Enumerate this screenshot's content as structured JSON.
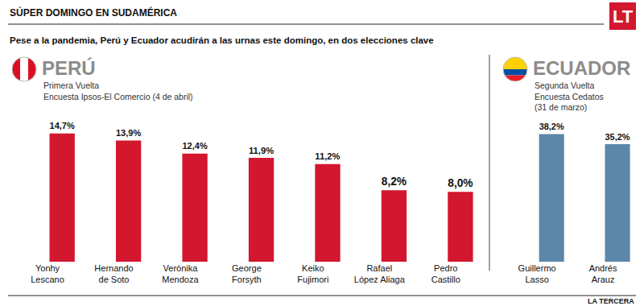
{
  "title": "SÚPER DOMINGO EN SUDAMÉRICA",
  "subtitle": "Pese a la pandemia, Perú y Ecuador acudirán a las urnas este domingo, en dos elecciones clave",
  "logo": "LT",
  "source": "LA TERCERA",
  "chart_data": [
    {
      "type": "bar",
      "title": "PERÚ",
      "subtitle": "Primera Vuelta\nEncuesta Ipsos-El Comercio (4 de abril)",
      "categories": [
        "Yonhy\nLescano",
        "Hernando\nde Soto",
        "Verónika\nMendoza",
        "George\nForsyth",
        "Keiko\nFujimori",
        "Rafael\nLópez Aliaga",
        "Pedro\nCastillo"
      ],
      "values": [
        14.7,
        13.9,
        12.4,
        11.9,
        11.2,
        8.2,
        8.0
      ],
      "value_labels": [
        "14,7%",
        "13,9%",
        "12,4%",
        "11,9%",
        "11,2%",
        "8,2%",
        "8,0%"
      ],
      "color": "#d3172e",
      "ylim": [
        0,
        18
      ],
      "data_labels": true,
      "tick_labels": "x",
      "grid": false
    },
    {
      "type": "bar",
      "title": "ECUADOR",
      "subtitle": "Segunda Vuelta\nEncuesta Cedatos\n(31 de marzo)",
      "categories": [
        "Guillermo\nLasso",
        "Andrés\nArauz"
      ],
      "values": [
        38.2,
        35.2
      ],
      "value_labels": [
        "38,2%",
        "35,2%"
      ],
      "color": "#5c87a9",
      "ylim": [
        0,
        47
      ],
      "data_labels": true,
      "tick_labels": "x",
      "grid": false
    }
  ]
}
